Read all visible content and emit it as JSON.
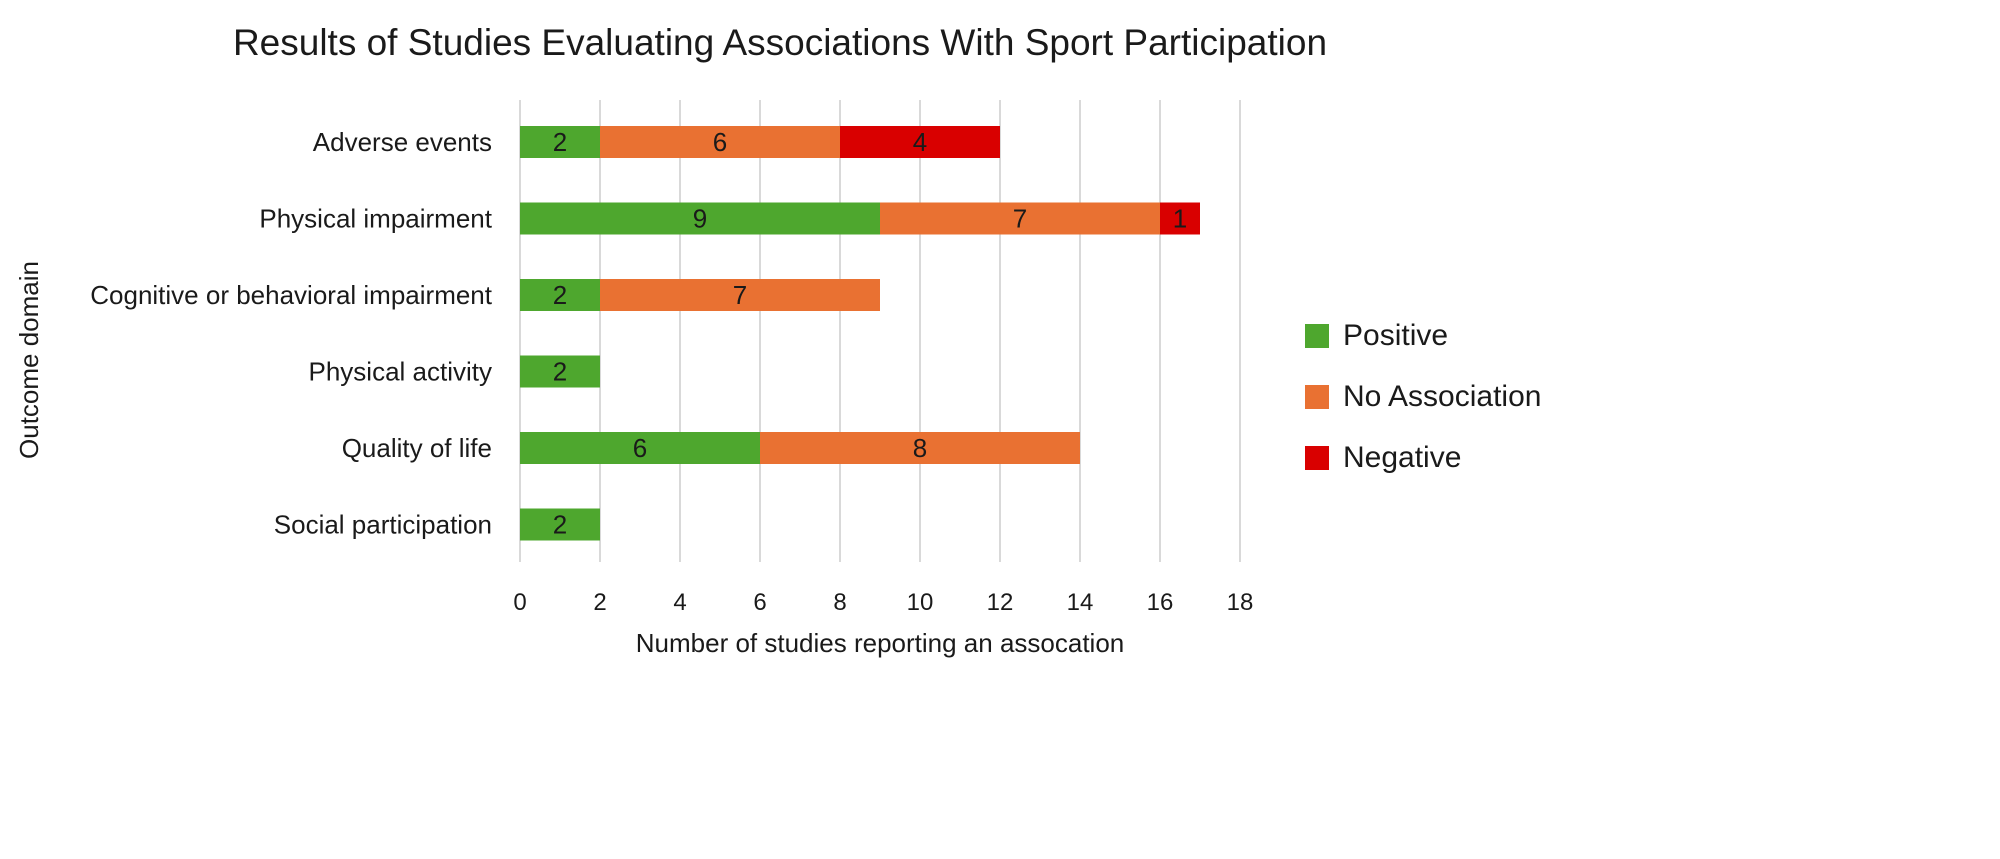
{
  "chart_data": {
    "type": "bar",
    "orientation": "horizontal",
    "stacked": true,
    "title": "Results of Studies Evaluating Associations With Sport Participation",
    "xlabel": "Number of studies reporting an assocation",
    "ylabel": "Outcome domain",
    "xlim": [
      0,
      18
    ],
    "xticks": [
      "0",
      "2",
      "4",
      "6",
      "8",
      "10",
      "12",
      "14",
      "16",
      "18"
    ],
    "grid": true,
    "legend_position": "right",
    "categories": [
      "Adverse events",
      "Physical impairment",
      "Cognitive or behavioral impairment",
      "Physical activity",
      "Quality of life",
      "Social participation"
    ],
    "series": [
      {
        "name": "Positive",
        "color": "#4EA72E",
        "values": [
          2,
          9,
          2,
          2,
          6,
          2
        ]
      },
      {
        "name": "No Association",
        "color": "#E97132",
        "values": [
          6,
          7,
          7,
          0,
          8,
          0
        ]
      },
      {
        "name": "Negative",
        "color": "#D90000",
        "values": [
          4,
          1,
          0,
          0,
          0,
          0
        ]
      }
    ]
  }
}
